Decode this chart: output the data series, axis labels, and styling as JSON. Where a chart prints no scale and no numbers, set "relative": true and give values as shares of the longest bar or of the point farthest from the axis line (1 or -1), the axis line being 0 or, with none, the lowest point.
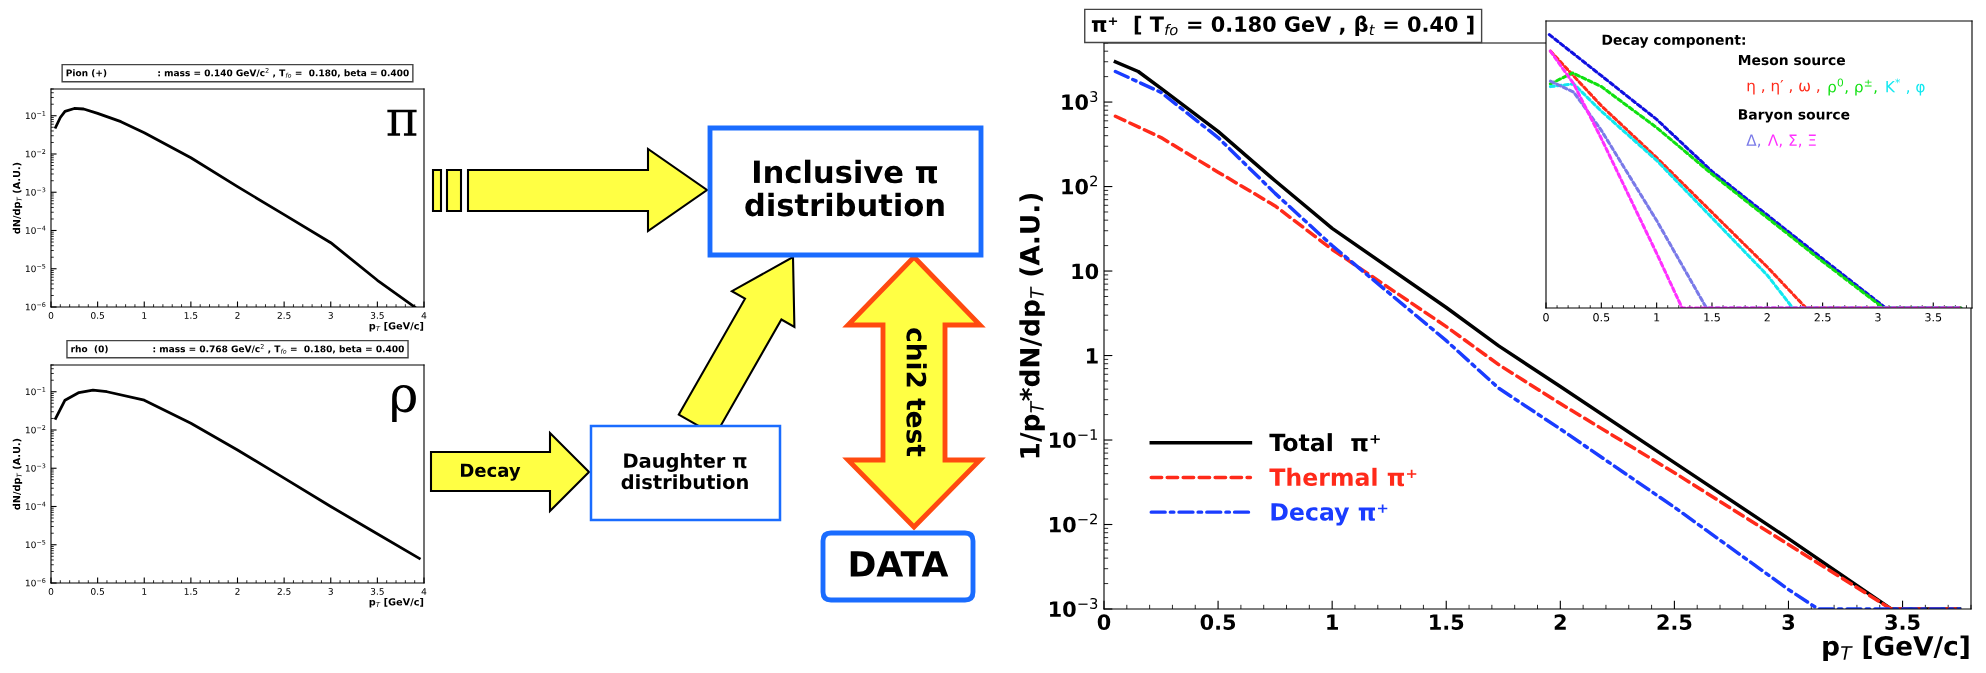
{
  "chart_data": [
    {
      "type": "line",
      "title": "Pion (+)                : mass = 0.140 GeV/c$^{2}$ , T$_{fo}$ =  0.180, beta = 0.400",
      "xlabel": "p$_{T}$ [GeV/c]",
      "ylabel": "dN/dp$_{T}$ (A.U.)",
      "log": "y",
      "xlim": [
        0,
        4
      ],
      "ylim": [
        1e-06,
        0.5
      ],
      "xticks": [
        0,
        0.5,
        1,
        1.5,
        2,
        2.5,
        3,
        3.5,
        4
      ],
      "yticks": [
        {
          "value": 1e-06,
          "label": "10$^{−6}$"
        },
        {
          "value": 1e-05,
          "label": "10$^{−5}$"
        },
        {
          "value": 0.0001,
          "label": "10$^{−4}$"
        },
        {
          "value": 0.001,
          "label": "10$^{−3}$"
        },
        {
          "value": 0.01,
          "label": "10$^{−2}$"
        },
        {
          "value": 0.1,
          "label": "10$^{−1}$"
        }
      ],
      "annotations": [
        "π"
      ],
      "series": [
        {
          "color": "#000000",
          "line_style": "solid",
          "x": [
            0.05,
            0.1,
            0.15,
            0.25,
            0.35,
            0.5,
            0.75,
            1,
            1.5,
            2,
            2.5,
            3,
            3.5,
            3.9
          ],
          "values": [
            0.05,
            0.09,
            0.13,
            0.155,
            0.15,
            0.115,
            0.07,
            0.036,
            0.008,
            0.0014,
            0.00026,
            4.8e-05,
            5e-06,
            1e-06
          ]
        }
      ]
    },
    {
      "type": "line",
      "title": "rho  (0)              : mass = 0.768 GeV/c$^{2}$ , T$_{fo}$ =  0.180, beta = 0.400",
      "xlabel": "p$_{T}$ [GeV/c]",
      "ylabel": "dN/dp$_{T}$ (A.U.)",
      "log": "y",
      "xlim": [
        0,
        4
      ],
      "ylim": [
        1e-06,
        0.5
      ],
      "xticks": [
        0,
        0.5,
        1,
        1.5,
        2,
        2.5,
        3,
        3.5,
        4
      ],
      "yticks": [
        {
          "value": 1e-06,
          "label": "10$^{−6}$"
        },
        {
          "value": 1e-05,
          "label": "10$^{−5}$"
        },
        {
          "value": 0.0001,
          "label": "10$^{−4}$"
        },
        {
          "value": 0.001,
          "label": "10$^{−3}$"
        },
        {
          "value": 0.01,
          "label": "10$^{−2}$"
        },
        {
          "value": 0.1,
          "label": "10$^{−1}$"
        }
      ],
      "annotations": [
        "ρ"
      ],
      "series": [
        {
          "color": "#000000",
          "line_style": "solid",
          "x": [
            0.05,
            0.15,
            0.3,
            0.45,
            0.6,
            1,
            1.5,
            2,
            2.5,
            3,
            3.42,
            3.95
          ],
          "values": [
            0.02,
            0.06,
            0.095,
            0.11,
            0.1,
            0.06,
            0.015,
            0.003,
            0.00055,
            0.0001,
            2.5e-05,
            4.4e-06
          ]
        }
      ]
    },
    {
      "type": "other",
      "annotations": [
        "Inclusive π\ndistribution",
        "Decay",
        "Daughter π\ndistribution",
        "chi2 test",
        "DATA"
      ]
    },
    {
      "type": "line",
      "title": "π⁺  [ T$_{fo}$ = 0.180 GeV , β$_{t}$ = 0.40 ]",
      "xlabel": "p$_{T}$ [GeV/c]",
      "ylabel": "1/p$_{T}$*dN/dp$_{T}$ (A.U.)",
      "log": "y",
      "xlim": [
        0,
        3.8
      ],
      "ylim": [
        0.001,
        5000
      ],
      "xticks": [
        0,
        0.5,
        1,
        1.5,
        2,
        2.5,
        3,
        3.5
      ],
      "yticks": [
        {
          "value": 0.001,
          "label": "10$^{−3}$"
        },
        {
          "value": 0.01,
          "label": "10$^{−2}$"
        },
        {
          "value": 0.1,
          "label": "10$^{−1}$"
        },
        1,
        10,
        {
          "value": 100,
          "label": "10$^{2}$"
        },
        {
          "value": 1000,
          "label": "10$^{3}$"
        }
      ],
      "legend": "bottom left",
      "series": [
        {
          "name": "Total  π⁺",
          "color": "#000000",
          "line_style": "solid",
          "x": [
            0.05,
            0.15,
            0.25,
            0.5,
            0.75,
            1,
            1.5,
            1.73,
            2,
            2.5,
            3,
            3.45,
            3.75
          ],
          "values": [
            3000,
            2300,
            1450,
            450,
            117,
            32,
            3.7,
            1.3,
            0.43,
            0.054,
            0.0068,
            0.001,
            0.001
          ]
        },
        {
          "name": "Thermal π⁺",
          "color": "#ff2a1a",
          "line_style": "dashed",
          "x": [
            0.05,
            0.25,
            0.5,
            0.75,
            1,
            1.5,
            1.73,
            2,
            2.5,
            3,
            3.45,
            3.75
          ],
          "values": [
            680,
            380,
            148,
            59,
            18,
            2.2,
            0.78,
            0.27,
            0.041,
            0.0058,
            0.001,
            0.001
          ]
        },
        {
          "name": "Decay π⁺",
          "color": "#1a3cff",
          "line_style": "dashdot",
          "x": [
            0.05,
            0.25,
            0.5,
            0.75,
            1,
            1.5,
            1.73,
            2,
            2.5,
            3,
            3.13,
            3.75
          ],
          "values": [
            2300,
            1300,
            380,
            83,
            20,
            1.5,
            0.41,
            0.135,
            0.016,
            0.0017,
            0.001,
            0.001
          ]
        }
      ]
    },
    {
      "type": "line",
      "relative": true,
      "tick_labels": "x",
      "xlim": [
        0,
        3.85
      ],
      "xticks": [
        0,
        0.5,
        1,
        1.5,
        2,
        2.5,
        3,
        3.5
      ],
      "legend": "top right",
      "annotations": [
        "Decay component:",
        "Meson source",
        "Baryon source"
      ],
      "series": [
        {
          "color": "#1010e0",
          "line_style": "dotted",
          "x": [
            0.03,
            0.5,
            1,
            1.5,
            2,
            2.5,
            3.07,
            3.75
          ],
          "values": [
            1.0,
            0.85,
            0.69,
            0.5,
            0.34,
            0.18,
            0,
            0
          ]
        },
        {
          "name": "η , η′ , ω ,",
          "color": "#ff2a1a",
          "line_style": "dotted",
          "x": [
            0.04,
            0.5,
            1,
            1.5,
            2,
            2.35,
            3.75
          ],
          "values": [
            0.94,
            0.74,
            0.55,
            0.35,
            0.15,
            0,
            0
          ]
        },
        {
          "name": "ρ$^{0}$, ρ$^{±}$,",
          "color": "#10e010",
          "line_style": "dotted",
          "x": [
            0.04,
            0.24,
            0.5,
            1,
            1.5,
            2,
            2.5,
            3.05,
            3.75
          ],
          "values": [
            0.82,
            0.86,
            0.81,
            0.66,
            0.49,
            0.33,
            0.17,
            0,
            0
          ]
        },
        {
          "name": "K$^{*}$ , φ",
          "color": "#10e8f0",
          "line_style": "dotted",
          "x": [
            0.04,
            0.25,
            0.5,
            1,
            1.5,
            2,
            2.23,
            3.75
          ],
          "values": [
            0.81,
            0.82,
            0.72,
            0.54,
            0.33,
            0.12,
            0,
            0
          ]
        },
        {
          "name": "Δ,",
          "color": "#7a7ae8",
          "line_style": "dotted",
          "x": [
            0.04,
            0.25,
            0.5,
            1,
            1.45,
            3.75
          ],
          "values": [
            0.83,
            0.79,
            0.65,
            0.32,
            0,
            0
          ]
        },
        {
          "name": "Λ, Σ, Ξ",
          "color": "#ff30ff",
          "line_style": "dotted",
          "x": [
            0.04,
            0.25,
            0.5,
            1,
            1.23,
            3.75
          ],
          "values": [
            0.94,
            0.82,
            0.62,
            0.2,
            0,
            0
          ]
        }
      ]
    }
  ]
}
